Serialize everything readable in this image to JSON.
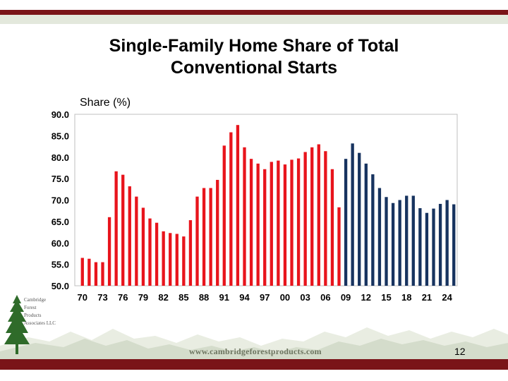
{
  "slide": {
    "title_line1": "Single-Family Home Share of Total",
    "title_line2": "Conventional Starts",
    "page_number": "12",
    "footer_url": "www.cambridgeforestproducts.com",
    "logo_lines": [
      "Cambridge",
      "Forest",
      "Products",
      "Associates LLC"
    ],
    "colors": {
      "accent_bar": "#7a1418",
      "band": "#e3e8dc",
      "historical": "#e8141c",
      "projection": "#17335f"
    }
  },
  "chart_data": {
    "type": "bar",
    "ylabel": "Share (%)",
    "ylim": [
      50,
      90
    ],
    "yticks": [
      "90.0",
      "85.0",
      "80.0",
      "75.0",
      "70.0",
      "65.0",
      "60.0",
      "55.0",
      "50.0"
    ],
    "xtick_labels": [
      "70",
      "73",
      "76",
      "79",
      "82",
      "85",
      "88",
      "91",
      "94",
      "97",
      "00",
      "03",
      "06",
      "09",
      "12",
      "15",
      "18",
      "21",
      "24"
    ],
    "grid": false,
    "series": [
      {
        "type": "historical",
        "color": "#e8141c",
        "x": [
          1970,
          1971,
          1972,
          1973,
          1974,
          1975,
          1976,
          1977,
          1978,
          1979,
          1980,
          1981,
          1982,
          1983,
          1984,
          1985,
          1986,
          1987,
          1988,
          1989,
          1990,
          1991,
          1992,
          1993,
          1994,
          1995,
          1996,
          1997,
          1998,
          1999,
          2000,
          2001,
          2002,
          2003,
          2004,
          2005,
          2006,
          2007,
          2008
        ],
        "values": [
          56.5,
          56.3,
          55.5,
          55.5,
          66.0,
          76.7,
          75.9,
          73.2,
          70.8,
          68.2,
          65.7,
          64.7,
          62.7,
          62.3,
          62.1,
          61.5,
          65.3,
          70.8,
          72.8,
          72.8,
          74.7,
          82.7,
          85.8,
          87.5,
          82.3,
          79.6,
          78.5,
          77.2,
          78.9,
          79.2,
          78.3,
          79.4,
          79.7,
          81.2,
          82.3,
          83.0,
          81.4,
          77.2,
          68.3
        ]
      },
      {
        "type": "projection",
        "color": "#17335f",
        "x": [
          2009,
          2010,
          2011,
          2012,
          2013,
          2014,
          2015,
          2016,
          2017,
          2018,
          2019,
          2020,
          2021,
          2022,
          2023,
          2024,
          2025
        ],
        "values": [
          79.6,
          83.2,
          81.0,
          78.5,
          76.0,
          72.8,
          70.7,
          69.3,
          70.0,
          71.0,
          71.0,
          68.1,
          67.0,
          68.0,
          69.1,
          70.0,
          69.0
        ]
      }
    ]
  }
}
